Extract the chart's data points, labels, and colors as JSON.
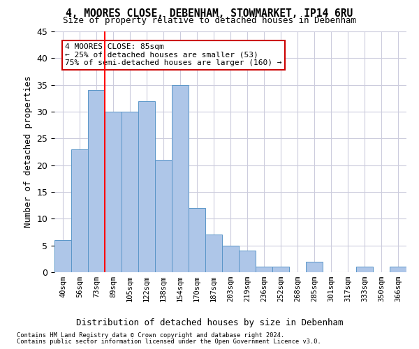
{
  "title_line1": "4, MOORES CLOSE, DEBENHAM, STOWMARKET, IP14 6RU",
  "title_line2": "Size of property relative to detached houses in Debenham",
  "xlabel": "Distribution of detached houses by size in Debenham",
  "ylabel": "Number of detached properties",
  "bar_values": [
    6,
    23,
    34,
    30,
    30,
    32,
    21,
    35,
    12,
    7,
    5,
    4,
    1,
    1,
    0,
    2,
    0,
    0,
    1,
    0,
    1
  ],
  "bin_labels": [
    "40sqm",
    "56sqm",
    "73sqm",
    "89sqm",
    "105sqm",
    "122sqm",
    "138sqm",
    "154sqm",
    "170sqm",
    "187sqm",
    "203sqm",
    "219sqm",
    "236sqm",
    "252sqm",
    "268sqm",
    "285sqm",
    "301sqm",
    "317sqm",
    "333sqm",
    "350sqm",
    "366sqm"
  ],
  "bar_color": "#aec6e8",
  "bar_edge_color": "#5a96c8",
  "grid_color": "#ccccdd",
  "background_color": "#ffffff",
  "red_line_x": 2.5,
  "annotation_text": "4 MOORES CLOSE: 85sqm\n← 25% of detached houses are smaller (53)\n75% of semi-detached houses are larger (160) →",
  "annotation_box_color": "#ffffff",
  "annotation_box_edge_color": "#cc0000",
  "ylim": [
    0,
    45
  ],
  "yticks": [
    0,
    5,
    10,
    15,
    20,
    25,
    30,
    35,
    40,
    45
  ],
  "footnote1": "Contains HM Land Registry data © Crown copyright and database right 2024.",
  "footnote2": "Contains public sector information licensed under the Open Government Licence v3.0."
}
